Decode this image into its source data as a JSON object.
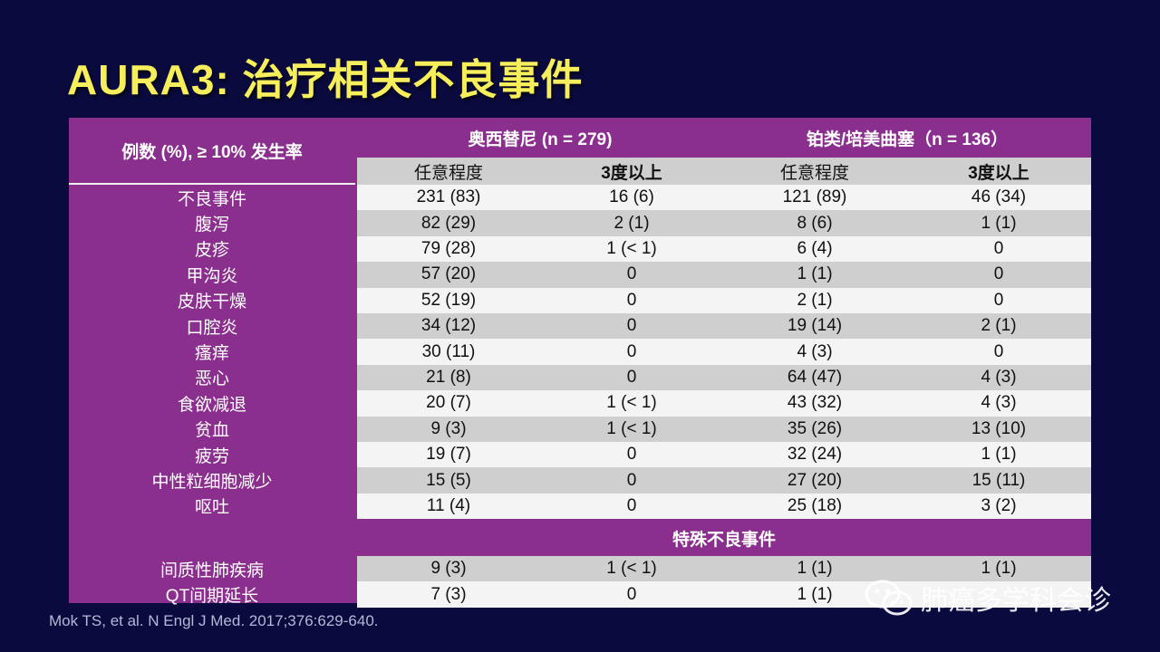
{
  "title": "AURA3: 治疗相关不良事件",
  "table": {
    "corner_label": "例数 (%), ≥ 10% 发生率",
    "groups": [
      "奥西替尼 (n = 279)",
      "铂类/培美曲塞（n = 136）"
    ],
    "subheaders": [
      "任意程度",
      "3度以上",
      "任意程度",
      "3度以上"
    ],
    "rows": [
      {
        "label": "不良事件",
        "values": [
          "231 (83)",
          "16 (6)",
          "121 (89)",
          "46 (34)"
        ]
      },
      {
        "label": "腹泻",
        "values": [
          "82 (29)",
          "2 (1)",
          "8 (6)",
          "1 (1)"
        ]
      },
      {
        "label": "皮疹",
        "values": [
          "79 (28)",
          "1 (< 1)",
          "6 (4)",
          "0"
        ]
      },
      {
        "label": "甲沟炎",
        "values": [
          "57 (20)",
          "0",
          "1 (1)",
          "0"
        ]
      },
      {
        "label": "皮肤干燥",
        "values": [
          "52 (19)",
          "0",
          "2 (1)",
          "0"
        ]
      },
      {
        "label": "口腔炎",
        "values": [
          "34 (12)",
          "0",
          "19 (14)",
          "2 (1)"
        ]
      },
      {
        "label": "瘙痒",
        "values": [
          "30 (11)",
          "0",
          "4 (3)",
          "0"
        ]
      },
      {
        "label": "恶心",
        "values": [
          "21 (8)",
          "0",
          "64 (47)",
          "4 (3)"
        ]
      },
      {
        "label": "食欲减退",
        "values": [
          "20 (7)",
          "1 (< 1)",
          "43 (32)",
          "4 (3)"
        ]
      },
      {
        "label": "贫血",
        "values": [
          "9 (3)",
          "1 (< 1)",
          "35 (26)",
          "13 (10)"
        ]
      },
      {
        "label": "疲劳",
        "values": [
          "19 (7)",
          "0",
          "32 (24)",
          "1 (1)"
        ]
      },
      {
        "label": "中性粒细胞减少",
        "values": [
          "15 (5)",
          "0",
          "27 (20)",
          "15 (11)"
        ]
      },
      {
        "label": "呕吐",
        "values": [
          "11 (4)",
          "0",
          "25 (18)",
          "3 (2)"
        ]
      }
    ],
    "special_header": "特殊不良事件",
    "special_rows": [
      {
        "label": "间质性肺疾病",
        "values": [
          "9 (3)",
          "1 (< 1)",
          "1 (1)",
          "1 (1)"
        ]
      },
      {
        "label": "QT间期延长",
        "values": [
          "7 (3)",
          "0",
          "1 (1)",
          ""
        ]
      }
    ]
  },
  "citation": "Mok TS, et al. N Engl J Med. 2017;376:629-640.",
  "watermark": {
    "text": "肺癌多学科会诊",
    "icon": "wechat-icon"
  },
  "colors": {
    "background": "#0b0a3e",
    "title": "#f6ee5a",
    "table_purple": "#8a2f8e",
    "row_light": "#f4f4f4",
    "row_dark": "#cfcfcf"
  }
}
